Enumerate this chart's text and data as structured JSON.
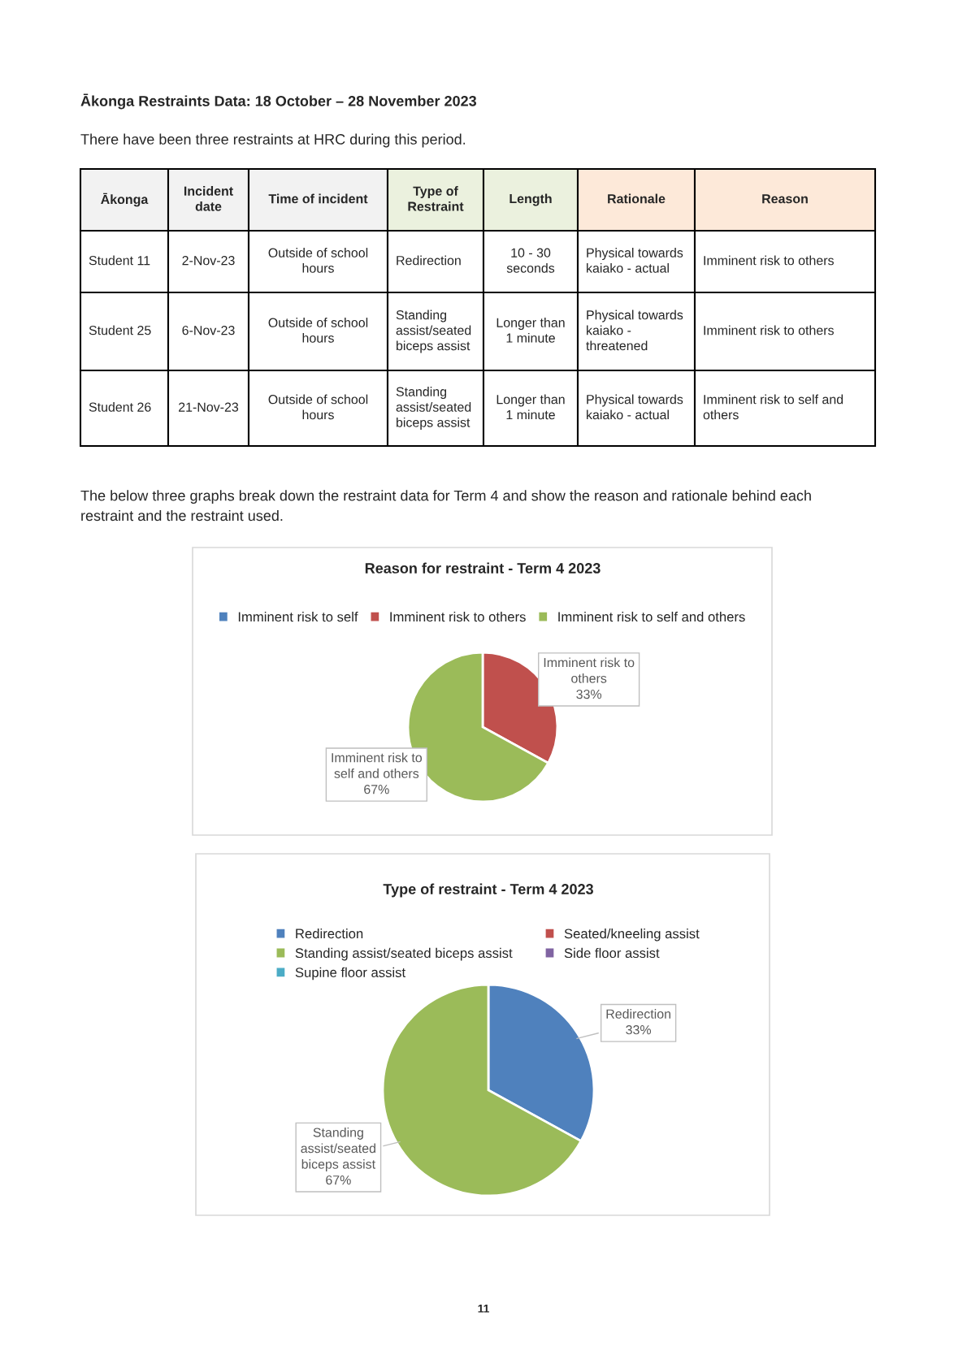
{
  "chart_data": [
    {
      "type": "other",
      "title": "Ākonga Restraints Data: 18 October – 28 November 2023",
      "annotations": [
        "There have been three restraints at HRC during this period.",
        "Ākonga",
        "Incident\ndate",
        "Time of incident",
        "Type of\nRestraint",
        "Length",
        "Rationale",
        "Reason",
        "Student 11",
        "2-Nov-23",
        "Outside of school\nhours",
        "Redirection",
        "10 - 30\nseconds",
        "Physical towards\nkaiako - actual",
        "Imminent risk to others",
        "Student 25",
        "6-Nov-23",
        "Outside of school\nhours",
        "Standing\nassist/seated\nbiceps assist",
        "Longer than\n1 minute",
        "Physical towards\nkaiako -\nthreatened",
        "Imminent risk to others",
        "Student 26",
        "21-Nov-23",
        "Outside of school\nhours",
        "Standing\nassist/seated\nbiceps assist",
        "Longer than\n1 minute",
        "Physical towards\nkaiako - actual",
        "Imminent risk to self and\nothers",
        "The below three graphs break down the restraint data for Term 4 and show the reason and rationale behind each\nrestraint and the restraint used.",
        "11"
      ]
    },
    {
      "type": "pie",
      "title": "Reason for restraint - Term 4 2023",
      "categories": [
        "Imminent risk to self",
        "Imminent risk to others",
        "Imminent risk to self and others"
      ],
      "values": [
        0,
        33,
        67
      ],
      "colors": [
        "#4f81bd",
        "#c0504d",
        "#9bbb59"
      ],
      "value_labels": [
        null,
        "Imminent risk to\nothers\n33%",
        "Imminent risk to\nself and others\n67%"
      ],
      "legend": "top"
    },
    {
      "type": "pie",
      "title": "Type of restraint - Term 4 2023",
      "categories": [
        "Redirection",
        "Seated/kneeling assist",
        "Standing assist/seated biceps assist",
        "Side floor assist",
        "Supine floor assist"
      ],
      "values": [
        33,
        0,
        67,
        0,
        0
      ],
      "colors": [
        "#4f81bd",
        "#c0504d",
        "#9bbb59",
        "#8064a2",
        "#4bacc6"
      ],
      "value_labels": [
        "Redirection\n33%",
        null,
        "Standing\nassist/seated\nbiceps assist\n67%",
        null,
        null
      ],
      "legend": "top"
    }
  ]
}
